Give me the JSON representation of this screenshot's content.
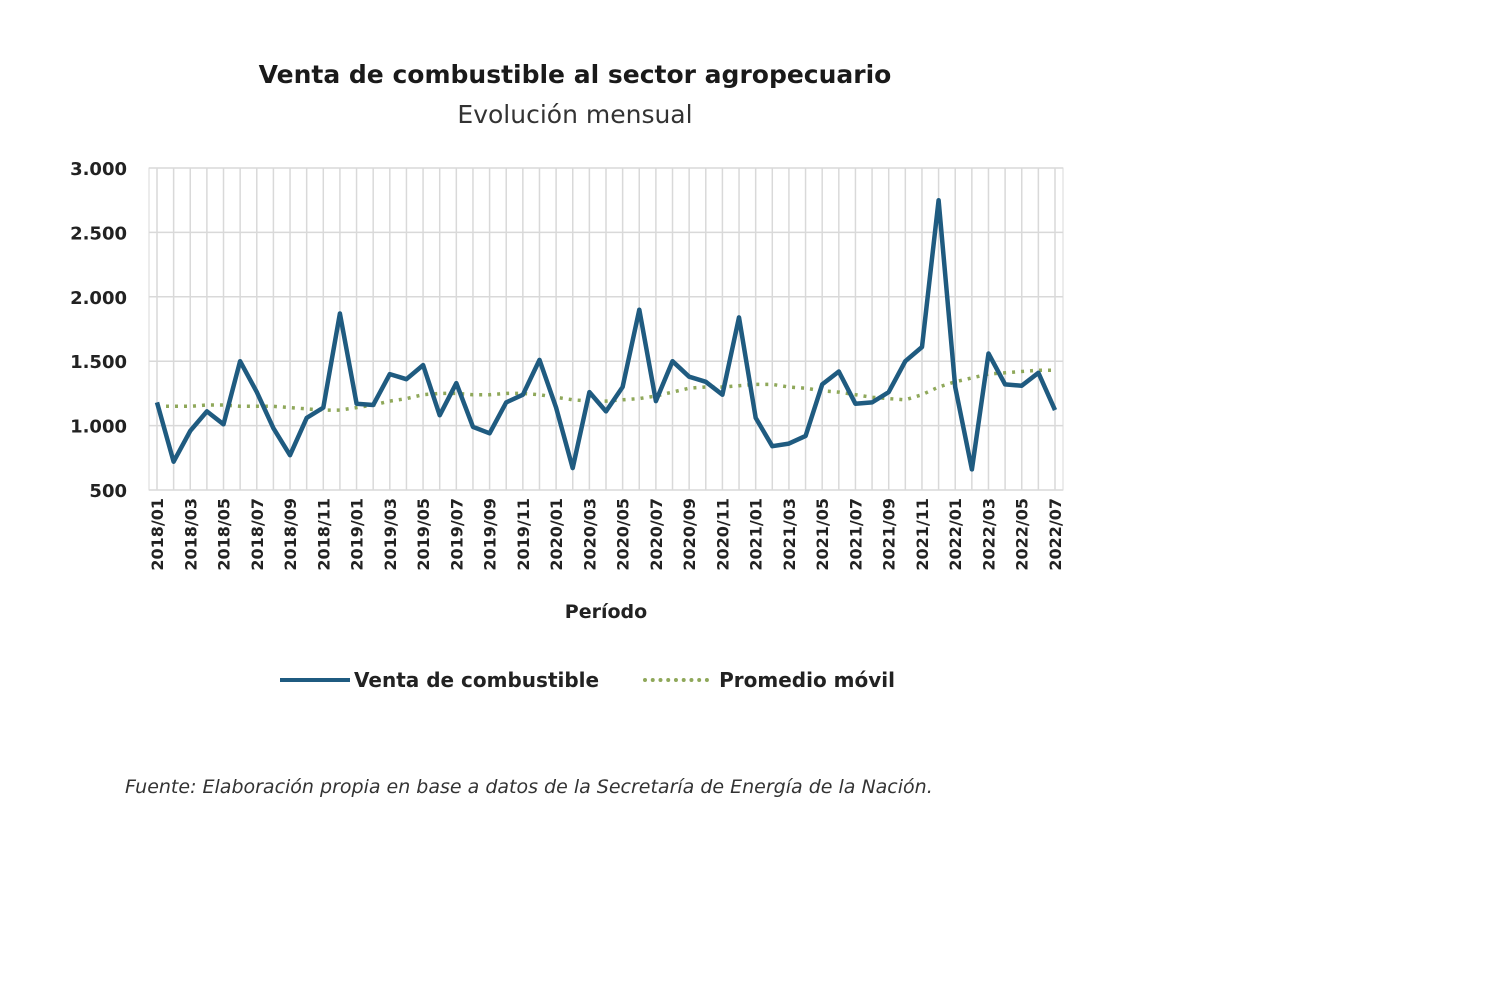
{
  "chart_data": {
    "type": "line",
    "title": "Venta de combustible al sector agropecuario",
    "subtitle": "Evolución mensual",
    "xlabel": "Período",
    "ylabel": "",
    "ylim": [
      500,
      3000
    ],
    "yticks": [
      "500",
      "1.000",
      "1.500",
      "2.000",
      "2.500",
      "3.000"
    ],
    "ytick_values": [
      500,
      1000,
      1500,
      2000,
      2500,
      3000
    ],
    "grid": true,
    "legend_position": "bottom",
    "x": [
      "2018/01",
      "2018/02",
      "2018/03",
      "2018/04",
      "2018/05",
      "2018/06",
      "2018/07",
      "2018/08",
      "2018/09",
      "2018/10",
      "2018/11",
      "2018/12",
      "2019/01",
      "2019/02",
      "2019/03",
      "2019/04",
      "2019/05",
      "2019/06",
      "2019/07",
      "2019/08",
      "2019/09",
      "2019/10",
      "2019/11",
      "2019/12",
      "2020/01",
      "2020/02",
      "2020/03",
      "2020/04",
      "2020/05",
      "2020/06",
      "2020/07",
      "2020/08",
      "2020/09",
      "2020/10",
      "2020/11",
      "2020/12",
      "2021/01",
      "2021/02",
      "2021/03",
      "2021/04",
      "2021/05",
      "2021/06",
      "2021/07",
      "2021/08",
      "2021/09",
      "2021/10",
      "2021/11",
      "2021/12",
      "2022/01",
      "2022/02",
      "2022/03",
      "2022/04",
      "2022/05",
      "2022/06",
      "2022/07"
    ],
    "xtick_labels": [
      "2018/01",
      "2018/03",
      "2018/05",
      "2018/07",
      "2018/09",
      "2018/11",
      "2019/01",
      "2019/03",
      "2019/05",
      "2019/07",
      "2019/09",
      "2019/11",
      "2020/01",
      "2020/03",
      "2020/05",
      "2020/07",
      "2020/09",
      "2020/11",
      "2021/01",
      "2021/03",
      "2021/05",
      "2021/07",
      "2021/09",
      "2021/11",
      "2022/01",
      "2022/03",
      "2022/05",
      "2022/07"
    ],
    "series": [
      {
        "name": "Venta de combustible",
        "color": "#1f5b80",
        "style": "solid",
        "values": [
          1180,
          720,
          960,
          1110,
          1010,
          1500,
          1260,
          980,
          770,
          1060,
          1140,
          1870,
          1170,
          1160,
          1400,
          1360,
          1470,
          1080,
          1330,
          990,
          940,
          1180,
          1240,
          1510,
          1140,
          670,
          1260,
          1110,
          1300,
          1900,
          1190,
          1500,
          1380,
          1340,
          1240,
          1840,
          1060,
          840,
          860,
          920,
          1320,
          1420,
          1170,
          1180,
          1260,
          1500,
          1610,
          2750,
          1300,
          660,
          1560,
          1320,
          1310,
          1410,
          1120
        ]
      },
      {
        "name": "Promedio móvil",
        "color": "#8fa85a",
        "style": "dotted",
        "values": [
          1150,
          1150,
          1150,
          1160,
          1160,
          1150,
          1150,
          1150,
          1140,
          1130,
          1120,
          1120,
          1140,
          1160,
          1190,
          1210,
          1240,
          1250,
          1250,
          1240,
          1240,
          1250,
          1250,
          1240,
          1220,
          1200,
          1190,
          1190,
          1200,
          1210,
          1230,
          1260,
          1290,
          1300,
          1300,
          1310,
          1320,
          1320,
          1300,
          1290,
          1270,
          1260,
          1240,
          1220,
          1210,
          1200,
          1240,
          1300,
          1340,
          1370,
          1400,
          1410,
          1420,
          1430,
          1430
        ]
      }
    ]
  },
  "source": "Fuente: Elaboración propia en base a datos de la Secretaría de Energía de la Nación."
}
